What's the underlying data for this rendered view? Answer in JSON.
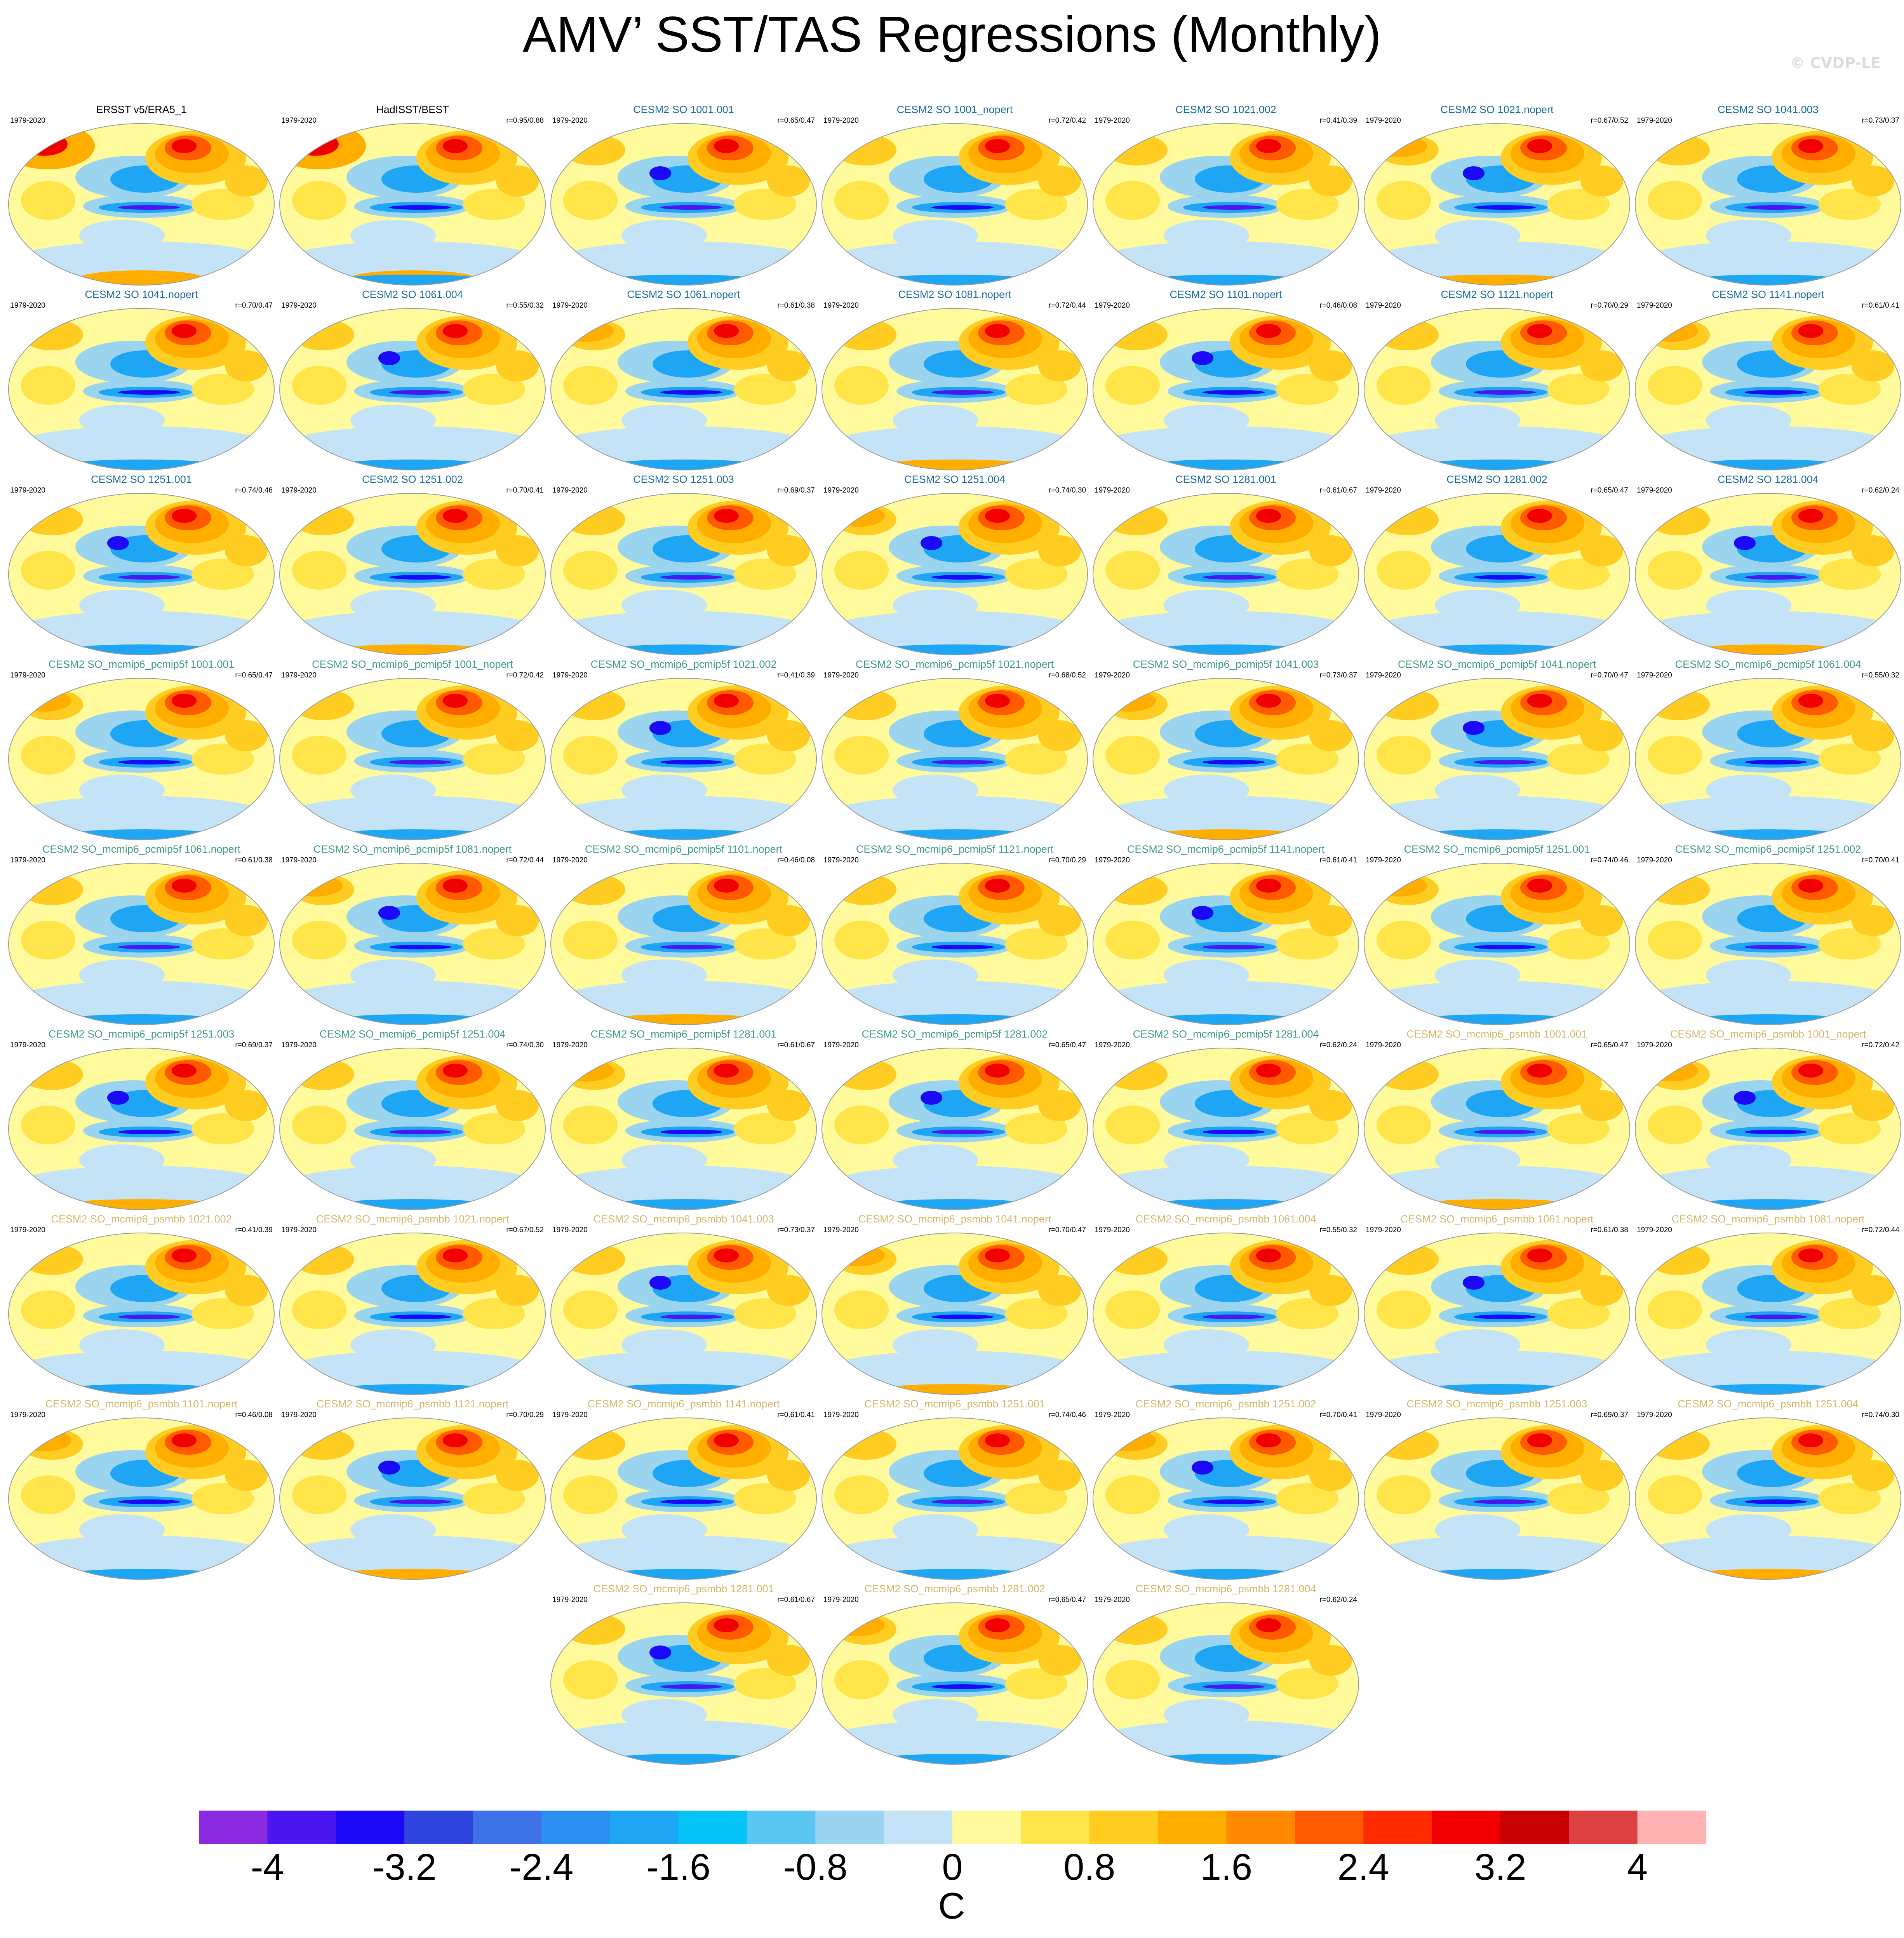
{
  "title": "AMV’ SST/TAS Regressions (Monthly)",
  "watermark": "© CVDP-LE",
  "colors": {
    "obs_title": "#000000",
    "so_title": "#1a6c9c",
    "pcmip5f_title": "#3f9a82",
    "psmbb_title": "#d1b768",
    "colorbar": [
      "#8a2be2",
      "#4b17f0",
      "#1c09f5",
      "#2f45de",
      "#3f72e6",
      "#2c8ff0",
      "#1ea6f5",
      "#05c3f5",
      "#5bc6f2",
      "#9bd4ee",
      "#c4e3f6",
      "#fffa9c",
      "#ffe54a",
      "#ffcd22",
      "#ffae00",
      "#ff8a00",
      "#ff5a00",
      "#ff2a00",
      "#f00000",
      "#c80000",
      "#dc4042",
      "#ffb2b2"
    ]
  },
  "colorbar": {
    "ticks": [
      "-4",
      "-3.2",
      "-2.4",
      "-1.6",
      "-0.8",
      "0",
      "0.8",
      "1.6",
      "2.4",
      "3.2",
      "4"
    ],
    "units": "C"
  },
  "panels": [
    {
      "title": "ERSST v5/ERA5_1",
      "period": "1979-2020",
      "r": "",
      "group": "obs"
    },
    {
      "title": "HadISST/BEST",
      "period": "1979-2020",
      "r": "r=0.95/0.88",
      "group": "obs"
    },
    {
      "title": "CESM2 SO 1001.001",
      "period": "1979-2020",
      "r": "r=0.65/0.47",
      "group": "so"
    },
    {
      "title": "CESM2 SO 1001_nopert",
      "period": "1979-2020",
      "r": "r=0.72/0.42",
      "group": "so"
    },
    {
      "title": "CESM2 SO 1021.002",
      "period": "1979-2020",
      "r": "r=0.41/0.39",
      "group": "so"
    },
    {
      "title": "CESM2 SO 1021.nopert",
      "period": "1979-2020",
      "r": "r=0.67/0.52",
      "group": "so"
    },
    {
      "title": "CESM2 SO 1041.003",
      "period": "1979-2020",
      "r": "r=0.73/0.37",
      "group": "so"
    },
    {
      "title": "CESM2 SO 1041.nopert",
      "period": "1979-2020",
      "r": "r=0.70/0.47",
      "group": "so"
    },
    {
      "title": "CESM2 SO 1061.004",
      "period": "1979-2020",
      "r": "r=0.55/0.32",
      "group": "so"
    },
    {
      "title": "CESM2 SO 1061.nopert",
      "period": "1979-2020",
      "r": "r=0.61/0.38",
      "group": "so"
    },
    {
      "title": "CESM2 SO 1081.nopert",
      "period": "1979-2020",
      "r": "r=0.72/0.44",
      "group": "so"
    },
    {
      "title": "CESM2 SO 1101.nopert",
      "period": "1979-2020",
      "r": "r=0.46/0.08",
      "group": "so"
    },
    {
      "title": "CESM2 SO 1121.nopert",
      "period": "1979-2020",
      "r": "r=0.70/0.29",
      "group": "so"
    },
    {
      "title": "CESM2 SO 1141.nopert",
      "period": "1979-2020",
      "r": "r=0.61/0.41",
      "group": "so"
    },
    {
      "title": "CESM2 SO 1251.001",
      "period": "1979-2020",
      "r": "r=0.74/0.46",
      "group": "so"
    },
    {
      "title": "CESM2 SO 1251.002",
      "period": "1979-2020",
      "r": "r=0.70/0.41",
      "group": "so"
    },
    {
      "title": "CESM2 SO 1251.003",
      "period": "1979-2020",
      "r": "r=0.69/0.37",
      "group": "so"
    },
    {
      "title": "CESM2 SO 1251.004",
      "period": "1979-2020",
      "r": "r=0.74/0.30",
      "group": "so"
    },
    {
      "title": "CESM2 SO 1281.001",
      "period": "1979-2020",
      "r": "r=0.61/0.67",
      "group": "so"
    },
    {
      "title": "CESM2 SO 1281.002",
      "period": "1979-2020",
      "r": "r=0.65/0.47",
      "group": "so"
    },
    {
      "title": "CESM2 SO 1281.004",
      "period": "1979-2020",
      "r": "r=0.62/0.24",
      "group": "so"
    },
    {
      "title": "CESM2 SO_mcmip6_pcmip5f 1001.001",
      "period": "1979-2020",
      "r": "r=0.65/0.47",
      "group": "pcmip5f"
    },
    {
      "title": "CESM2 SO_mcmip6_pcmip5f 1001_nopert",
      "period": "1979-2020",
      "r": "r=0.72/0.42",
      "group": "pcmip5f"
    },
    {
      "title": "CESM2 SO_mcmip6_pcmip5f 1021.002",
      "period": "1979-2020",
      "r": "r=0.41/0.39",
      "group": "pcmip5f"
    },
    {
      "title": "CESM2 SO_mcmip6_pcmip5f 1021.nopert",
      "period": "1979-2020",
      "r": "r=0.68/0.52",
      "group": "pcmip5f"
    },
    {
      "title": "CESM2 SO_mcmip6_pcmip5f 1041.003",
      "period": "1979-2020",
      "r": "r=0.73/0.37",
      "group": "pcmip5f"
    },
    {
      "title": "CESM2 SO_mcmip6_pcmip5f 1041.nopert",
      "period": "1979-2020",
      "r": "r=0.70/0.47",
      "group": "pcmip5f"
    },
    {
      "title": "CESM2 SO_mcmip6_pcmip5f 1061.004",
      "period": "1979-2020",
      "r": "r=0.55/0.32",
      "group": "pcmip5f"
    },
    {
      "title": "CESM2 SO_mcmip6_pcmip5f 1061.nopert",
      "period": "1979-2020",
      "r": "r=0.61/0.38",
      "group": "pcmip5f"
    },
    {
      "title": "CESM2 SO_mcmip6_pcmip5f 1081.nopert",
      "period": "1979-2020",
      "r": "r=0.72/0.44",
      "group": "pcmip5f"
    },
    {
      "title": "CESM2 SO_mcmip6_pcmip5f 1101.nopert",
      "period": "1979-2020",
      "r": "r=0.46/0.08",
      "group": "pcmip5f"
    },
    {
      "title": "CESM2 SO_mcmip6_pcmip5f 1121.nopert",
      "period": "1979-2020",
      "r": "r=0.70/0.29",
      "group": "pcmip5f"
    },
    {
      "title": "CESM2 SO_mcmip6_pcmip5f 1141.nopert",
      "period": "1979-2020",
      "r": "r=0.61/0.41",
      "group": "pcmip5f"
    },
    {
      "title": "CESM2 SO_mcmip6_pcmip5f 1251.001",
      "period": "1979-2020",
      "r": "r=0.74/0.46",
      "group": "pcmip5f"
    },
    {
      "title": "CESM2 SO_mcmip6_pcmip5f 1251.002",
      "period": "1979-2020",
      "r": "r=0.70/0.41",
      "group": "pcmip5f"
    },
    {
      "title": "CESM2 SO_mcmip6_pcmip5f 1251.003",
      "period": "1979-2020",
      "r": "r=0.69/0.37",
      "group": "pcmip5f"
    },
    {
      "title": "CESM2 SO_mcmip6_pcmip5f 1251.004",
      "period": "1979-2020",
      "r": "r=0.74/0.30",
      "group": "pcmip5f"
    },
    {
      "title": "CESM2 SO_mcmip6_pcmip5f 1281.001",
      "period": "1979-2020",
      "r": "r=0.61/0.67",
      "group": "pcmip5f"
    },
    {
      "title": "CESM2 SO_mcmip6_pcmip5f 1281.002",
      "period": "1979-2020",
      "r": "r=0.65/0.47",
      "group": "pcmip5f"
    },
    {
      "title": "CESM2 SO_mcmip6_pcmip5f 1281.004",
      "period": "1979-2020",
      "r": "r=0.62/0.24",
      "group": "pcmip5f"
    },
    {
      "title": "CESM2 SO_mcmip6_psmbb 1001.001",
      "period": "1979-2020",
      "r": "r=0.65/0.47",
      "group": "psmbb"
    },
    {
      "title": "CESM2 SO_mcmip6_psmbb 1001_nopert",
      "period": "1979-2020",
      "r": "r=0.72/0.42",
      "group": "psmbb"
    },
    {
      "title": "CESM2 SO_mcmip6_psmbb 1021.002",
      "period": "1979-2020",
      "r": "r=0.41/0.39",
      "group": "psmbb"
    },
    {
      "title": "CESM2 SO_mcmip6_psmbb 1021.nopert",
      "period": "1979-2020",
      "r": "r=0.67/0.52",
      "group": "psmbb"
    },
    {
      "title": "CESM2 SO_mcmip6_psmbb 1041.003",
      "period": "1979-2020",
      "r": "r=0.73/0.37",
      "group": "psmbb"
    },
    {
      "title": "CESM2 SO_mcmip6_psmbb 1041.nopert",
      "period": "1979-2020",
      "r": "r=0.70/0.47",
      "group": "psmbb"
    },
    {
      "title": "CESM2 SO_mcmip6_psmbb 1061.004",
      "period": "1979-2020",
      "r": "r=0.55/0.32",
      "group": "psmbb"
    },
    {
      "title": "CESM2 SO_mcmip6_psmbb 1061.nopert",
      "period": "1979-2020",
      "r": "r=0.61/0.38",
      "group": "psmbb"
    },
    {
      "title": "CESM2 SO_mcmip6_psmbb 1081.nopert",
      "period": "1979-2020",
      "r": "r=0.72/0.44",
      "group": "psmbb"
    },
    {
      "title": "CESM2 SO_mcmip6_psmbb 1101.nopert",
      "period": "1979-2020",
      "r": "r=0.46/0.08",
      "group": "psmbb"
    },
    {
      "title": "CESM2 SO_mcmip6_psmbb 1121.nopert",
      "period": "1979-2020",
      "r": "r=0.70/0.29",
      "group": "psmbb"
    },
    {
      "title": "CESM2 SO_mcmip6_psmbb 1141.nopert",
      "period": "1979-2020",
      "r": "r=0.61/0.41",
      "group": "psmbb"
    },
    {
      "title": "CESM2 SO_mcmip6_psmbb 1251.001",
      "period": "1979-2020",
      "r": "r=0.74/0.46",
      "group": "psmbb"
    },
    {
      "title": "CESM2 SO_mcmip6_psmbb 1251.002",
      "period": "1979-2020",
      "r": "r=0.70/0.41",
      "group": "psmbb"
    },
    {
      "title": "CESM2 SO_mcmip6_psmbb 1251.003",
      "period": "1979-2020",
      "r": "r=0.69/0.37",
      "group": "psmbb"
    },
    {
      "title": "CESM2 SO_mcmip6_psmbb 1251.004",
      "period": "1979-2020",
      "r": "r=0.74/0.30",
      "group": "psmbb"
    },
    {
      "title": "CESM2 SO_mcmip6_psmbb 1281.001",
      "period": "1979-2020",
      "r": "r=0.61/0.67",
      "group": "psmbb"
    },
    {
      "title": "CESM2 SO_mcmip6_psmbb 1281.002",
      "period": "1979-2020",
      "r": "r=0.65/0.47",
      "group": "psmbb"
    },
    {
      "title": "CESM2 SO_mcmip6_psmbb 1281.004",
      "period": "1979-2020",
      "r": "r=0.62/0.24",
      "group": "psmbb"
    }
  ]
}
